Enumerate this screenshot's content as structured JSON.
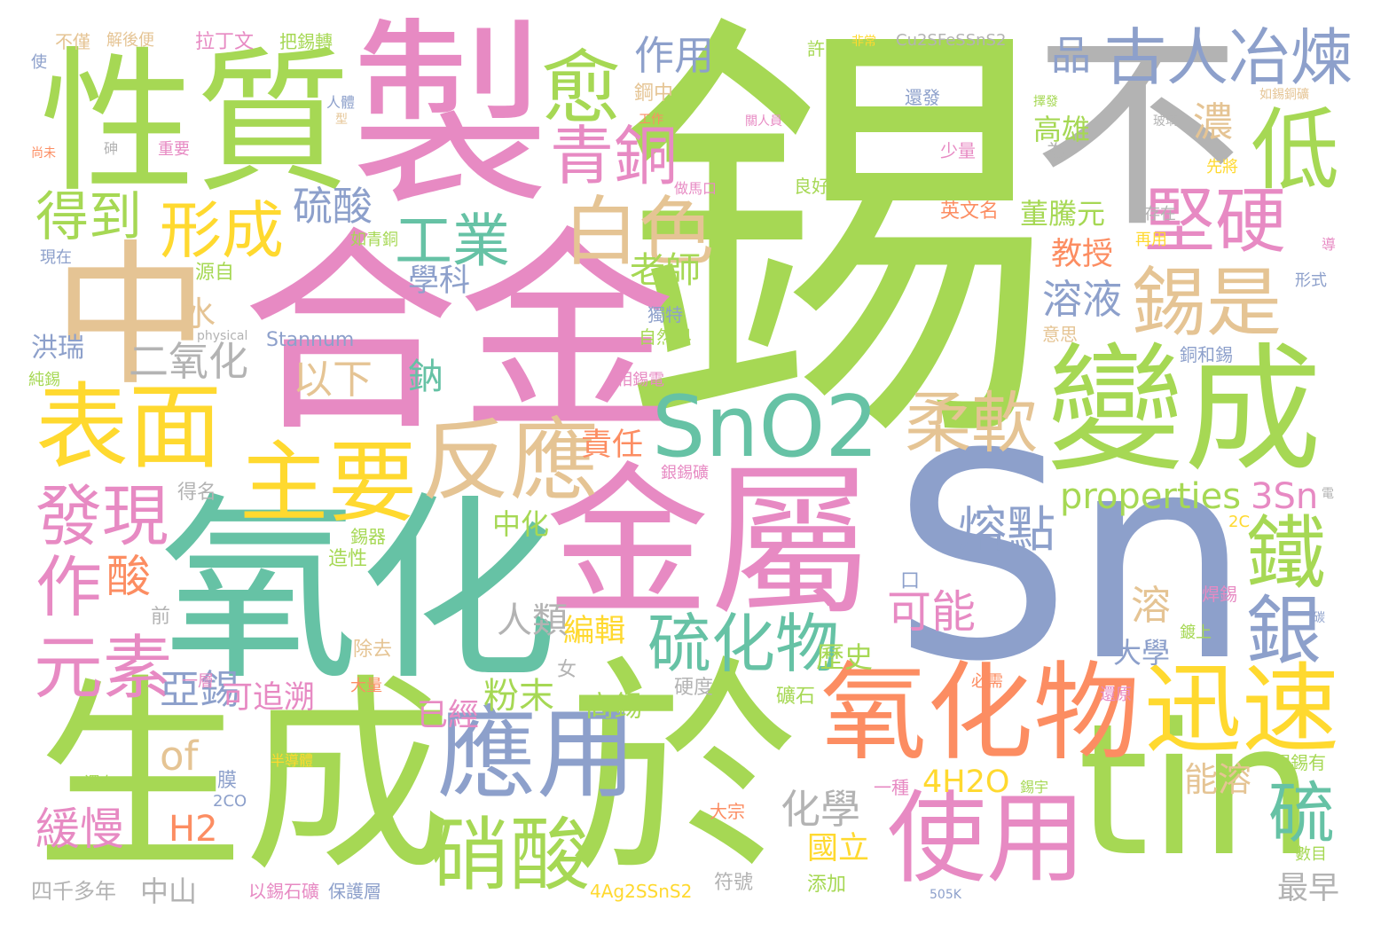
{
  "words": [
    {
      "text": "錫",
      "color": "#a6d854",
      "rot": false
    },
    {
      "text": "合金",
      "color": "#e78ac3",
      "rot": false
    },
    {
      "text": "Sn",
      "color": "#8da0cb",
      "rot": false
    },
    {
      "text": "氧化",
      "color": "#66c2a5",
      "rot": false
    },
    {
      "text": "生成",
      "color": "#a6d854",
      "rot": false
    },
    {
      "text": "於",
      "color": "#a6d854",
      "rot": false
    },
    {
      "text": "金屬",
      "color": "#e78ac3",
      "rot": false
    },
    {
      "text": "製",
      "color": "#e78ac3",
      "rot": false
    },
    {
      "text": "性質",
      "color": "#a6d854",
      "rot": false
    },
    {
      "text": "不",
      "color": "#b3b3b3",
      "rot": false
    },
    {
      "text": "中",
      "color": "#e5c494",
      "rot": false
    },
    {
      "text": "tin",
      "color": "#a6d854",
      "rot": false
    },
    {
      "text": "變成",
      "color": "#a6d854",
      "rot": false
    },
    {
      "text": "氧化物",
      "color": "#fc8d62",
      "rot": false
    },
    {
      "text": "應用",
      "color": "#8da0cb",
      "rot": false
    },
    {
      "text": "迅速",
      "color": "#ffd92f",
      "rot": false
    },
    {
      "text": "使用",
      "color": "#e78ac3",
      "rot": false
    },
    {
      "text": "表面",
      "color": "#ffd92f",
      "rot": false
    },
    {
      "text": "反應",
      "color": "#e5c494",
      "rot": false
    },
    {
      "text": "主要",
      "color": "#ffd92f",
      "rot": false
    },
    {
      "text": "SnO2",
      "color": "#66c2a5",
      "rot": false
    },
    {
      "text": "硝酸",
      "color": "#a6d854",
      "rot": false
    },
    {
      "text": "古人冶煉",
      "color": "#8da0cb",
      "rot": false
    },
    {
      "text": "錫是",
      "color": "#e5c494",
      "rot": false
    },
    {
      "text": "白色",
      "color": "#e5c494",
      "rot": false
    },
    {
      "text": "青銅",
      "color": "#e78ac3",
      "rot": false
    },
    {
      "text": "低",
      "color": "#a6d854",
      "rot": false
    },
    {
      "text": "愈",
      "color": "#a6d854",
      "rot": false
    },
    {
      "text": "堅硬",
      "color": "#e78ac3",
      "rot": false
    },
    {
      "text": "柔軟",
      "color": "#e5c494",
      "rot": false
    },
    {
      "text": "發現",
      "color": "#e78ac3",
      "rot": false
    },
    {
      "text": "元素",
      "color": "#e78ac3",
      "rot": false
    },
    {
      "text": "硫化物",
      "color": "#66c2a5",
      "rot": false
    },
    {
      "text": "形成",
      "color": "#ffd92f",
      "rot": false
    },
    {
      "text": "鐵",
      "color": "#a6d854",
      "rot": false
    },
    {
      "text": "銀",
      "color": "#8da0cb",
      "rot": false
    },
    {
      "text": "硫",
      "color": "#66c2a5",
      "rot": false
    },
    {
      "text": "工業",
      "color": "#66c2a5",
      "rot": false
    },
    {
      "text": "得到",
      "color": "#a6d854",
      "rot": false
    },
    {
      "text": "作",
      "color": "#e78ac3",
      "rot": false
    },
    {
      "text": "酸",
      "color": "#fc8d62",
      "rot": false
    },
    {
      "text": "熔點",
      "color": "#8da0cb",
      "rot": false
    },
    {
      "text": "properties",
      "color": "#a6d854",
      "rot": false
    },
    {
      "text": "作用",
      "color": "#8da0cb",
      "rot": false
    },
    {
      "text": "品",
      "color": "#8da0cb",
      "rot": false
    },
    {
      "text": "硫酸",
      "color": "#8da0cb",
      "rot": false
    },
    {
      "text": "二氧化",
      "color": "#b3b3b3",
      "rot": false
    },
    {
      "text": "以下",
      "color": "#e5c494",
      "rot": false
    },
    {
      "text": "可能",
      "color": "#e78ac3",
      "rot": false
    },
    {
      "text": "4H2O",
      "color": "#ffd92f",
      "rot": false
    },
    {
      "text": "3Sn",
      "color": "#e78ac3",
      "rot": false
    },
    {
      "text": "亞錫",
      "color": "#8da0cb",
      "rot": false
    },
    {
      "text": "of",
      "color": "#e5c494",
      "rot": false
    },
    {
      "text": "緩慢",
      "color": "#e78ac3",
      "rot": false
    },
    {
      "text": "H2",
      "color": "#fc8d62",
      "rot": false
    },
    {
      "text": "化學",
      "color": "#b3b3b3",
      "rot": false
    },
    {
      "text": "粉末",
      "color": "#a6d854",
      "rot": false
    },
    {
      "text": "溶",
      "color": "#e5c494",
      "rot": false
    },
    {
      "text": "人類",
      "color": "#b3b3b3",
      "rot": false
    },
    {
      "text": "編輯",
      "color": "#ffd92f",
      "rot": false
    },
    {
      "text": "溶液",
      "color": "#8da0cb",
      "rot": false
    },
    {
      "text": "濃",
      "color": "#e5c494",
      "rot": false
    },
    {
      "text": "高雄",
      "color": "#a6d854",
      "rot": false
    },
    {
      "text": "董騰元",
      "color": "#a6d854",
      "rot": false
    },
    {
      "text": "教授",
      "color": "#fc8d62",
      "rot": false
    },
    {
      "text": "學科",
      "color": "#8da0cb",
      "rot": false
    },
    {
      "text": "老師",
      "color": "#a6d854",
      "rot": false
    },
    {
      "text": "鈉",
      "color": "#66c2a5",
      "rot": false
    },
    {
      "text": "水",
      "color": "#e5c494",
      "rot": false
    },
    {
      "text": "洪瑞",
      "color": "#8da0cb",
      "rot": false
    },
    {
      "text": "責任",
      "color": "#fc8d62",
      "rot": false
    },
    {
      "text": "中化",
      "color": "#a6d854",
      "rot": false
    },
    {
      "text": "大學",
      "color": "#8da0cb",
      "rot": false
    },
    {
      "text": "歷史",
      "color": "#a6d854",
      "rot": false
    },
    {
      "text": "能溶",
      "color": "#e5c494",
      "rot": false
    },
    {
      "text": "國立",
      "color": "#ffd92f",
      "rot": false
    },
    {
      "text": "已經",
      "color": "#e78ac3",
      "rot": false
    },
    {
      "text": "可追溯",
      "color": "#e78ac3",
      "rot": false
    },
    {
      "text": "高錫",
      "color": "#a6d854",
      "rot": false
    },
    {
      "text": "四千多年",
      "color": "#b3b3b3",
      "rot": false
    },
    {
      "text": "中山",
      "color": "#b3b3b3",
      "rot": false
    },
    {
      "text": "最早",
      "color": "#b3b3b3",
      "rot": false
    },
    {
      "text": "Stannum",
      "color": "#8da0cb",
      "rot": false
    },
    {
      "text": "Cu2SFeSSnS2",
      "color": "#b3b3b3",
      "rot": false
    },
    {
      "text": "4Ag2SSnS2",
      "color": "#ffd92f",
      "rot": false
    },
    {
      "text": "英文名",
      "color": "#fc8d62",
      "rot": false
    },
    {
      "text": "拉丁文",
      "color": "#e78ac3",
      "rot": false
    },
    {
      "text": "把錫轉",
      "color": "#a6d854",
      "rot": false
    },
    {
      "text": "解後便",
      "color": "#e5c494",
      "rot": false
    },
    {
      "text": "不僅",
      "color": "#e5c494",
      "rot": false
    },
    {
      "text": "許多",
      "color": "#a6d854",
      "rot": false
    },
    {
      "text": "鋼中",
      "color": "#e5c494",
      "rot": false
    },
    {
      "text": "還發",
      "color": "#8da0cb",
      "rot": false
    },
    {
      "text": "良好",
      "color": "#a6d854",
      "rot": false
    },
    {
      "text": "存在",
      "color": "#b3b3b3",
      "rot": false
    },
    {
      "text": "意思",
      "color": "#e5c494",
      "rot": false
    },
    {
      "text": "再用",
      "color": "#ffd92f",
      "rot": false
    },
    {
      "text": "形式",
      "color": "#8da0cb",
      "rot": false
    },
    {
      "text": "源自",
      "color": "#a6d854",
      "rot": false
    },
    {
      "text": "現在",
      "color": "#8da0cb",
      "rot": false
    },
    {
      "text": "得名",
      "color": "#b3b3b3",
      "rot": false
    },
    {
      "text": "純錫",
      "color": "#a6d854",
      "rot": false
    },
    {
      "text": "自然界",
      "color": "#a6d854",
      "rot": false
    },
    {
      "text": "相錫電",
      "color": "#e78ac3",
      "rot": false
    },
    {
      "text": "獨特",
      "color": "#8da0cb",
      "rot": false
    },
    {
      "text": "銅和錫",
      "color": "#8da0cb",
      "rot": false
    },
    {
      "text": "銀錫礦",
      "color": "#e78ac3",
      "rot": false
    },
    {
      "text": "錫器",
      "color": "#a6d854",
      "rot": false
    },
    {
      "text": "造性",
      "color": "#a6d854",
      "rot": false
    },
    {
      "text": "焊錫",
      "color": "#e78ac3",
      "rot": false
    },
    {
      "text": "鍍上",
      "color": "#a6d854",
      "rot": false
    },
    {
      "text": "還原",
      "color": "#e78ac3",
      "rot": false
    },
    {
      "text": "除去",
      "color": "#e5c494",
      "rot": false
    },
    {
      "text": "硬度",
      "color": "#b3b3b3",
      "rot": false
    },
    {
      "text": "礦石",
      "color": "#a6d854",
      "rot": false
    },
    {
      "text": "大量",
      "color": "#fc8d62",
      "rot": false
    },
    {
      "text": "一層",
      "color": "#e78ac3",
      "rot": false
    },
    {
      "text": "女",
      "color": "#b3b3b3",
      "rot": false
    },
    {
      "text": "前",
      "color": "#b3b3b3",
      "rot": false
    },
    {
      "text": "膜",
      "color": "#8da0cb",
      "rot": false
    },
    {
      "text": "一種",
      "color": "#e78ac3",
      "rot": false
    },
    {
      "text": "現錫有",
      "color": "#a6d854",
      "rot": false
    },
    {
      "text": "數目",
      "color": "#a6d854",
      "rot": false
    },
    {
      "text": "還有",
      "color": "#a6d854",
      "rot": false
    },
    {
      "text": "2CO",
      "color": "#8da0cb",
      "rot": false
    },
    {
      "text": "大宗",
      "color": "#fc8d62",
      "rot": false
    },
    {
      "text": "添加",
      "color": "#a6d854",
      "rot": false
    },
    {
      "text": "符號",
      "color": "#b3b3b3",
      "rot": false
    },
    {
      "text": "以錫石礦",
      "color": "#e78ac3",
      "rot": false
    },
    {
      "text": "保護層",
      "color": "#8da0cb",
      "rot": false
    },
    {
      "text": "必需",
      "color": "#fc8d62",
      "rot": false
    },
    {
      "text": "2C",
      "color": "#ffd92f",
      "rot": false
    },
    {
      "text": "為",
      "color": "#b3b3b3",
      "rot": false
    },
    {
      "text": "口",
      "color": "#8da0cb",
      "rot": false
    },
    {
      "text": "少量",
      "color": "#e78ac3",
      "rot": false
    },
    {
      "text": "重要",
      "color": "#e78ac3",
      "rot": false
    },
    {
      "text": "使",
      "color": "#8da0cb",
      "rot": false
    },
    {
      "text": "先將",
      "color": "#ffd92f",
      "rot": false
    },
    {
      "text": "人體",
      "color": "#8da0cb",
      "rot": false
    },
    {
      "text": "做馬口",
      "color": "#e78ac3",
      "rot": false
    },
    {
      "text": "如青銅",
      "color": "#a6d854",
      "rot": false
    },
    {
      "text": "physical",
      "color": "#b3b3b3",
      "rot": false
    },
    {
      "text": "半導體",
      "color": "#ffd92f",
      "rot": false
    },
    {
      "text": "505K",
      "color": "#8da0cb",
      "rot": false
    },
    {
      "text": "如錫銅礦",
      "color": "#e5c494",
      "rot": false
    },
    {
      "text": "非常",
      "color": "#ffd92f",
      "rot": false
    },
    {
      "text": "錫宇",
      "color": "#a6d854",
      "rot": false
    },
    {
      "text": "擇發",
      "color": "#a6d854",
      "rot": false
    },
    {
      "text": "玻璃",
      "color": "#b3b3b3",
      "rot": false
    },
    {
      "text": "工作",
      "color": "#fc8d62",
      "rot": false
    },
    {
      "text": "關人員",
      "color": "#e78ac3",
      "rot": false
    },
    {
      "text": "導",
      "color": "#e78ac3",
      "rot": false
    },
    {
      "text": "碳",
      "color": "#8da0cb",
      "rot": false
    },
    {
      "text": "電",
      "color": "#b3b3b3",
      "rot": false
    },
    {
      "text": "砷",
      "color": "#b3b3b3",
      "rot": false
    },
    {
      "text": "尚未",
      "color": "#fc8d62",
      "rot": false
    },
    {
      "text": "型",
      "color": "#e5c494",
      "rot": false
    }
  ]
}
